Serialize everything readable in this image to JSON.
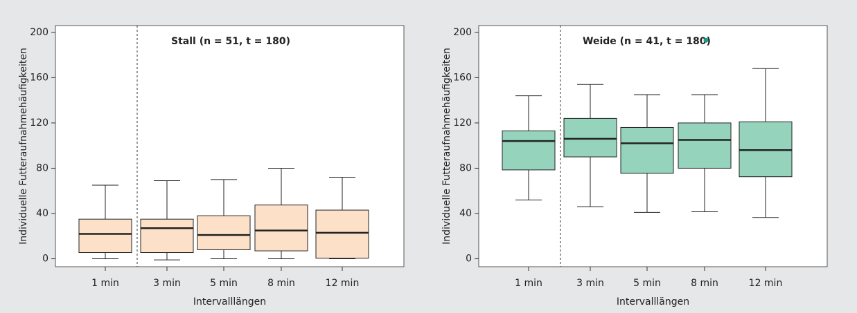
{
  "chart_data": [
    {
      "type": "box",
      "annotation": "Stall (n = 51, t = 180)",
      "xlabel": "Intervalllängen",
      "ylabel": "Individuelle Futteraufnahmehäufigkeiten",
      "categories": [
        "1 min",
        "3 min",
        "5 min",
        "8 min",
        "12 min"
      ],
      "color": "#fde0c8",
      "series": [
        {
          "min": 0,
          "q1": 5.5,
          "median": 22,
          "q3": 35,
          "max": 65
        },
        {
          "min": -1,
          "q1": 5.5,
          "median": 27,
          "q3": 35,
          "max": 69
        },
        {
          "min": 0,
          "q1": 8,
          "median": 21,
          "q3": 38,
          "max": 70
        },
        {
          "min": 0,
          "q1": 7,
          "median": 25,
          "q3": 47.5,
          "max": 80
        },
        {
          "min": 0,
          "q1": 0.5,
          "median": 23,
          "q3": 43,
          "max": 72
        }
      ],
      "ylim": [
        -7,
        206
      ],
      "yticks": [
        0,
        40,
        80,
        120,
        160,
        200
      ]
    },
    {
      "type": "box",
      "annotation": "Weide (n = 41, t = 180)",
      "xlabel": "Intervalllängen",
      "ylabel": "Individuelle Futteraufnahmehäufigkeiten",
      "categories": [
        "1 min",
        "3 min",
        "5 min",
        "8 min",
        "12 min"
      ],
      "color": "#95d3bd",
      "outlier_color": "#1a9e8a",
      "series": [
        {
          "min": 52,
          "q1": 78.5,
          "median": 104,
          "q3": 113,
          "max": 144
        },
        {
          "min": 46,
          "q1": 90,
          "median": 106,
          "q3": 124,
          "max": 154
        },
        {
          "min": 41,
          "q1": 75.5,
          "median": 102,
          "q3": 116,
          "max": 145
        },
        {
          "min": 41.5,
          "q1": 80,
          "median": 105,
          "q3": 120,
          "max": 145,
          "outliers": [
            193
          ]
        },
        {
          "min": 36.5,
          "q1": 72.5,
          "median": 96,
          "q3": 121,
          "max": 168
        }
      ],
      "ylim": [
        -7,
        206
      ],
      "yticks": [
        0,
        40,
        80,
        120,
        160,
        200
      ]
    }
  ]
}
